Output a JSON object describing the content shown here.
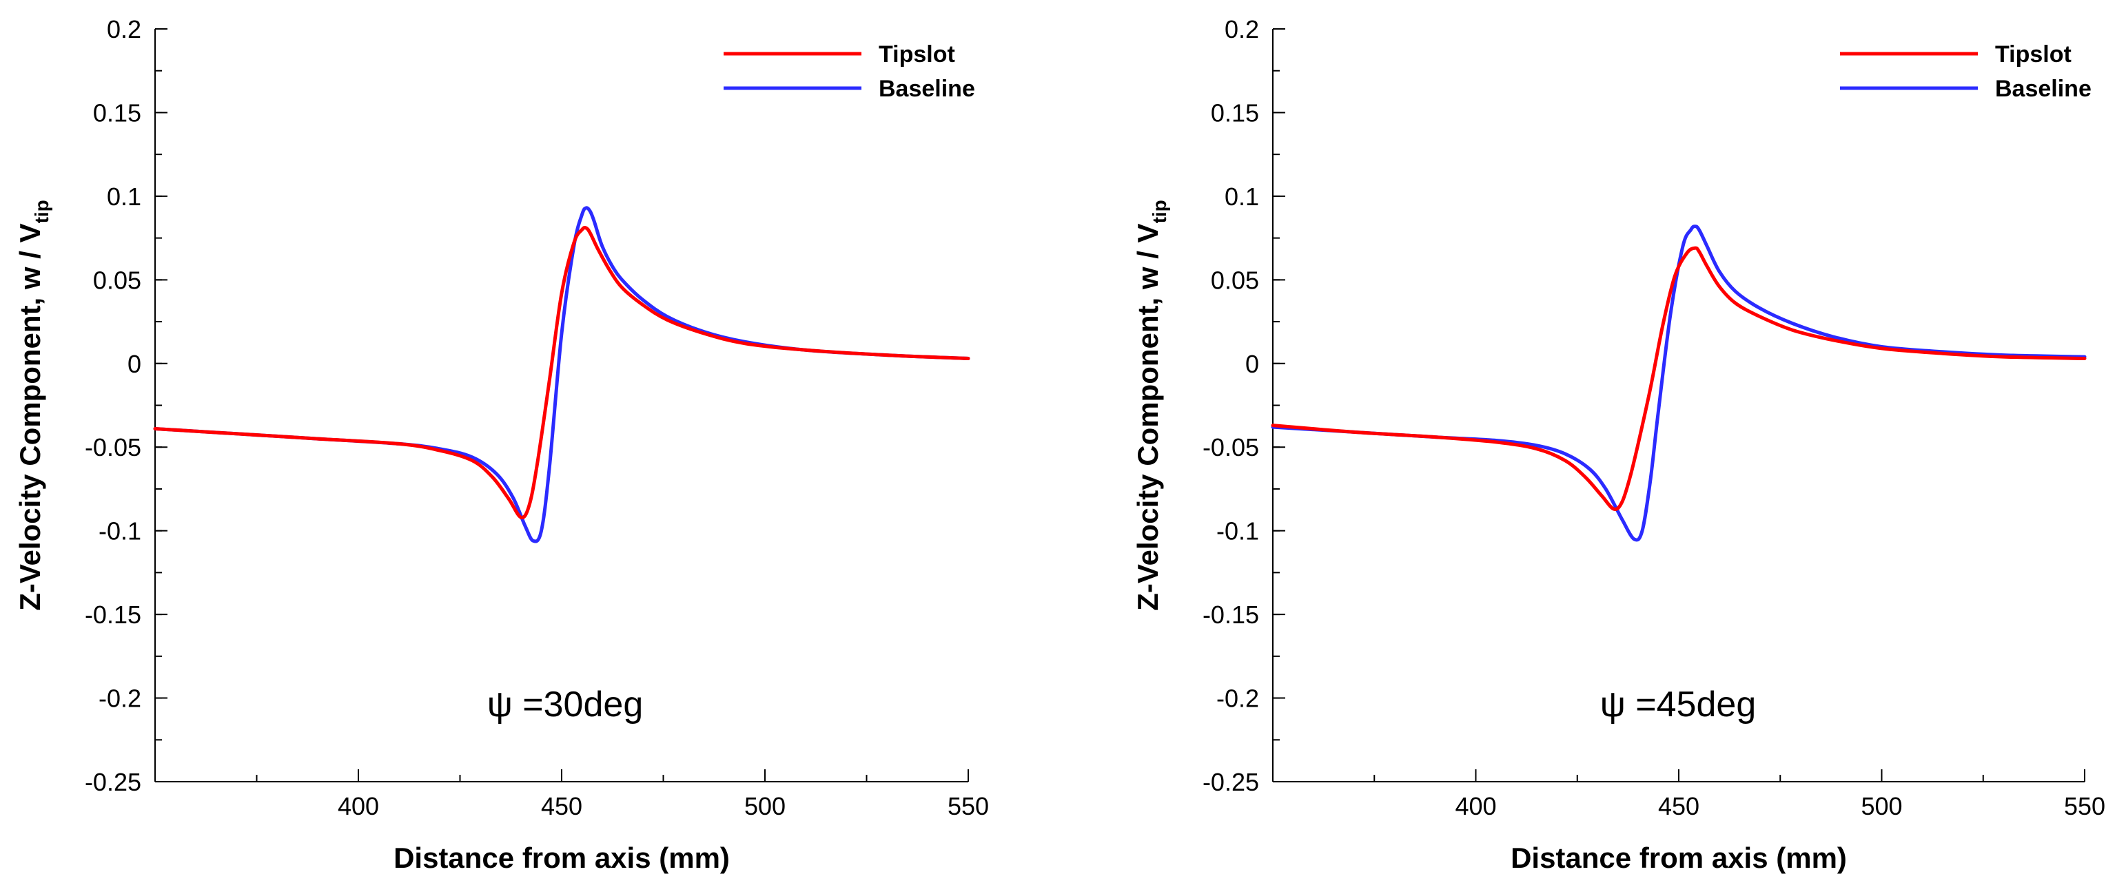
{
  "colors": {
    "tipslot": "#ff0000",
    "baseline": "#2b2bff"
  },
  "chart_data": [
    {
      "type": "line",
      "annotation": "ψ =30deg",
      "xlabel": "Distance from axis (mm)",
      "ylabel_main": "Z-Velocity Component, w / V",
      "ylabel_sub": "tip",
      "xlim": [
        350,
        550
      ],
      "ylim": [
        -0.25,
        0.2
      ],
      "xticks": [
        {
          "value": 400,
          "label": "400"
        },
        {
          "value": 450,
          "label": "450"
        },
        {
          "value": 500,
          "label": "500"
        },
        {
          "value": 550,
          "label": "550"
        }
      ],
      "yticks": [
        {
          "value": 0.2,
          "label": "0.2"
        },
        {
          "value": 0.15,
          "label": "0.15"
        },
        {
          "value": 0.1,
          "label": "0.1"
        },
        {
          "value": 0.05,
          "label": "0.05"
        },
        {
          "value": 0,
          "label": "0"
        },
        {
          "value": -0.05,
          "label": "-0.05"
        },
        {
          "value": -0.1,
          "label": "-0.1"
        },
        {
          "value": -0.15,
          "label": "-0.15"
        },
        {
          "value": -0.2,
          "label": "-0.2"
        },
        {
          "value": -0.25,
          "label": "-0.25"
        }
      ],
      "legend": [
        {
          "name": "Tipslot",
          "color": "#ff0000"
        },
        {
          "name": "Baseline",
          "color": "#2b2bff"
        }
      ],
      "series": [
        {
          "name": "Baseline",
          "color": "#2b2bff",
          "x": [
            350,
            370,
            390,
            410,
            420,
            428,
            434,
            438,
            441,
            443,
            445,
            447,
            450,
            453,
            455,
            456,
            457,
            458,
            460,
            463,
            466,
            470,
            476,
            485,
            495,
            510,
            530,
            550
          ],
          "y": [
            -0.039,
            -0.042,
            -0.045,
            -0.048,
            -0.051,
            -0.056,
            -0.066,
            -0.08,
            -0.097,
            -0.106,
            -0.1,
            -0.062,
            0.018,
            0.07,
            0.089,
            0.093,
            0.091,
            0.085,
            0.07,
            0.056,
            0.047,
            0.038,
            0.028,
            0.019,
            0.013,
            0.008,
            0.005,
            0.003
          ]
        },
        {
          "name": "Tipslot",
          "color": "#ff0000",
          "x": [
            350,
            370,
            390,
            410,
            420,
            428,
            433,
            437,
            440,
            442,
            444,
            447,
            450,
            453,
            455,
            456,
            457,
            459,
            462,
            465,
            470,
            476,
            485,
            495,
            510,
            530,
            550
          ],
          "y": [
            -0.039,
            -0.042,
            -0.045,
            -0.048,
            -0.052,
            -0.058,
            -0.068,
            -0.081,
            -0.092,
            -0.085,
            -0.06,
            -0.01,
            0.042,
            0.072,
            0.08,
            0.081,
            0.078,
            0.068,
            0.055,
            0.045,
            0.035,
            0.026,
            0.018,
            0.012,
            0.008,
            0.005,
            0.003
          ]
        }
      ]
    },
    {
      "type": "line",
      "annotation": "ψ =45deg",
      "xlabel": "Distance from axis (mm)",
      "ylabel_main": "Z-Velocity Component, w / V",
      "ylabel_sub": "tip",
      "xlim": [
        350,
        550
      ],
      "ylim": [
        -0.25,
        0.2
      ],
      "xticks": [
        {
          "value": 400,
          "label": "400"
        },
        {
          "value": 450,
          "label": "450"
        },
        {
          "value": 500,
          "label": "500"
        },
        {
          "value": 550,
          "label": "550"
        }
      ],
      "yticks": [
        {
          "value": 0.2,
          "label": "0.2"
        },
        {
          "value": 0.15,
          "label": "0.15"
        },
        {
          "value": 0.1,
          "label": "0.1"
        },
        {
          "value": 0.05,
          "label": "0.05"
        },
        {
          "value": 0,
          "label": "0"
        },
        {
          "value": -0.05,
          "label": "-0.05"
        },
        {
          "value": -0.1,
          "label": "-0.1"
        },
        {
          "value": -0.15,
          "label": "-0.15"
        },
        {
          "value": -0.2,
          "label": "-0.2"
        },
        {
          "value": -0.25,
          "label": "-0.25"
        }
      ],
      "legend": [
        {
          "name": "Tipslot",
          "color": "#ff0000"
        },
        {
          "name": "Baseline",
          "color": "#2b2bff"
        }
      ],
      "series": [
        {
          "name": "Baseline",
          "color": "#2b2bff",
          "x": [
            350,
            370,
            390,
            405,
            415,
            422,
            428,
            432,
            436,
            439,
            441,
            443,
            445,
            448,
            451,
            453,
            454,
            455,
            457,
            460,
            464,
            470,
            478,
            488,
            500,
            515,
            530,
            550
          ],
          "y": [
            -0.038,
            -0.041,
            -0.044,
            -0.046,
            -0.049,
            -0.054,
            -0.063,
            -0.075,
            -0.093,
            -0.105,
            -0.1,
            -0.07,
            -0.028,
            0.03,
            0.07,
            0.08,
            0.082,
            0.08,
            0.07,
            0.055,
            0.043,
            0.033,
            0.024,
            0.016,
            0.01,
            0.007,
            0.005,
            0.004
          ]
        },
        {
          "name": "Tipslot",
          "color": "#ff0000",
          "x": [
            350,
            370,
            390,
            405,
            415,
            422,
            427,
            431,
            434,
            436,
            438,
            440,
            443,
            446,
            449,
            452,
            454,
            455,
            457,
            460,
            464,
            470,
            478,
            488,
            500,
            515,
            530,
            550
          ],
          "y": [
            -0.037,
            -0.041,
            -0.044,
            -0.047,
            -0.051,
            -0.058,
            -0.068,
            -0.079,
            -0.087,
            -0.083,
            -0.068,
            -0.048,
            -0.015,
            0.022,
            0.052,
            0.066,
            0.069,
            0.067,
            0.058,
            0.046,
            0.036,
            0.028,
            0.02,
            0.014,
            0.009,
            0.006,
            0.004,
            0.003
          ]
        }
      ]
    }
  ]
}
